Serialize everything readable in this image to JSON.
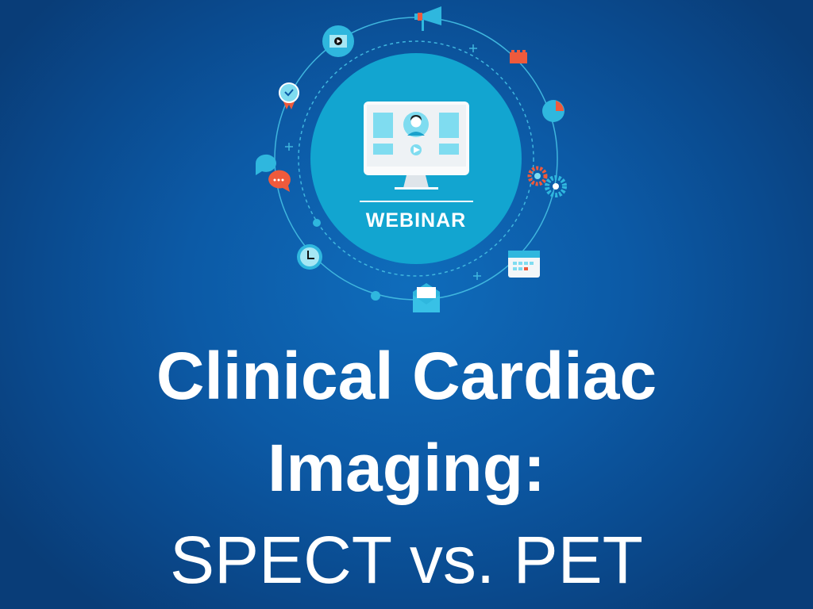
{
  "badge": {
    "label": "WEBINAR"
  },
  "title": {
    "line1": "Clinical Cardiac",
    "line2": "Imaging:",
    "line3": "SPECT vs. PET"
  },
  "colors": {
    "circle": "#12a5d0",
    "accent": "#ef5a3c",
    "light": "#7fdcf0",
    "ring": "#3fb6de"
  },
  "icons": [
    "megaphone-icon",
    "video-icon",
    "award-icon",
    "chat-icon",
    "clock-icon",
    "envelope-icon",
    "calendar-icon",
    "gears-icon",
    "pie-chart-icon",
    "blocks-icon",
    "monitor-icon",
    "user-icon",
    "play-icon"
  ]
}
